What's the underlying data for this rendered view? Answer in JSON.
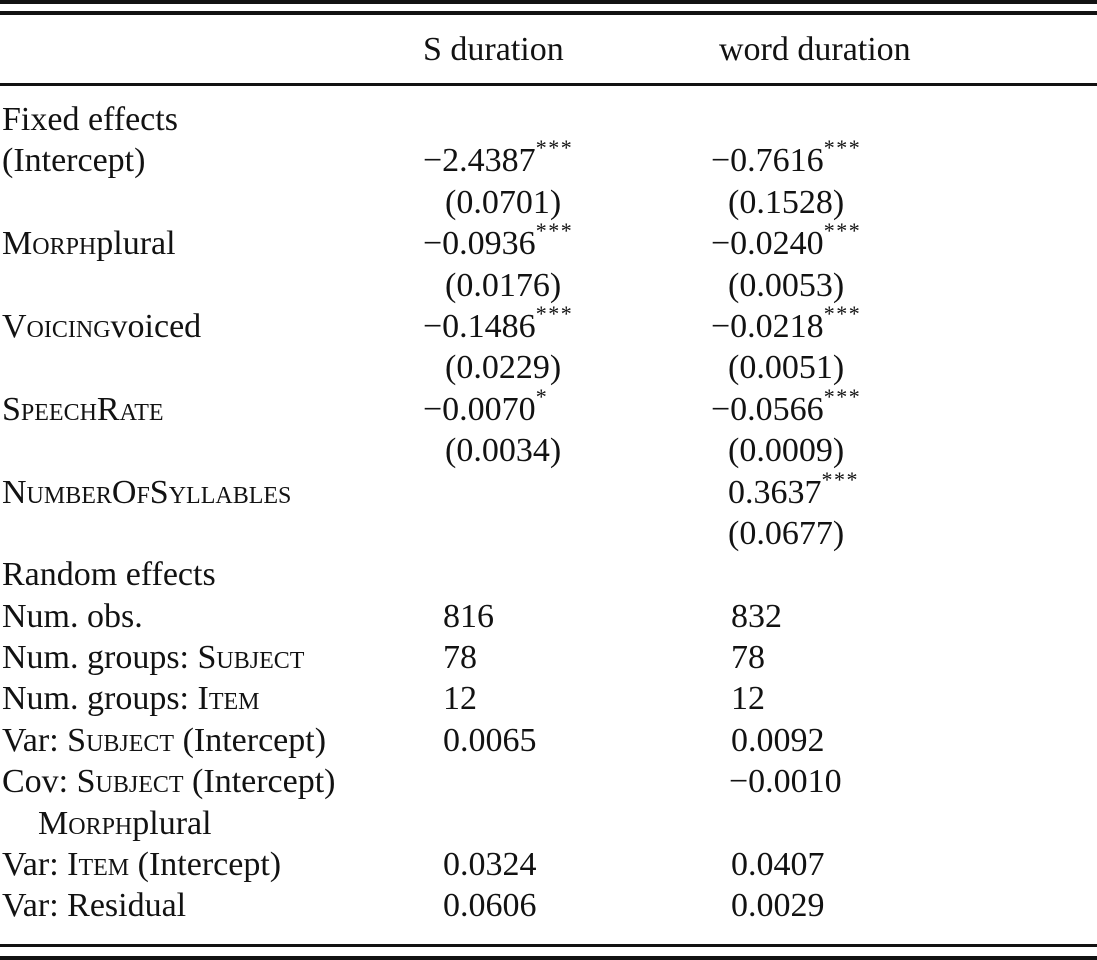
{
  "table": {
    "header": {
      "col1": "S duration",
      "col2": "word duration"
    },
    "text_color": "#121212",
    "background_color": "#ffffff",
    "rows": [
      {
        "label": [
          {
            "t": "Fixed effects"
          }
        ],
        "c1": null,
        "c2": null
      },
      {
        "label": [
          {
            "t": "(Intercept)"
          }
        ],
        "c1": {
          "v": "−2.4387",
          "sup": "***",
          "ind": 0
        },
        "c2": {
          "v": "−0.7616",
          "sup": "***",
          "ind": 0
        }
      },
      {
        "label": [],
        "c1": {
          "v": "(0.0701)",
          "ind": 22
        },
        "c2": {
          "v": "(0.1528)",
          "ind": 17
        }
      },
      {
        "label": [
          {
            "t": "Morph",
            "sc": true
          },
          {
            "t": "plural"
          }
        ],
        "c1": {
          "v": "−0.0936",
          "sup": "***",
          "ind": 0
        },
        "c2": {
          "v": "−0.0240",
          "sup": "***",
          "ind": 0
        }
      },
      {
        "label": [],
        "c1": {
          "v": "(0.0176)",
          "ind": 22
        },
        "c2": {
          "v": "(0.0053)",
          "ind": 17
        }
      },
      {
        "label": [
          {
            "t": "Voicing",
            "sc": true
          },
          {
            "t": "voiced"
          }
        ],
        "c1": {
          "v": "−0.1486",
          "sup": "***",
          "ind": 0
        },
        "c2": {
          "v": "−0.0218",
          "sup": "***",
          "ind": 0
        }
      },
      {
        "label": [],
        "c1": {
          "v": "(0.0229)",
          "ind": 22
        },
        "c2": {
          "v": "(0.0051)",
          "ind": 17
        }
      },
      {
        "label": [
          {
            "t": "SpeechRate",
            "sc": true
          }
        ],
        "c1": {
          "v": "−0.0070",
          "sup": "*",
          "ind": 0
        },
        "c2": {
          "v": "−0.0566",
          "sup": "***",
          "ind": 0
        }
      },
      {
        "label": [],
        "c1": {
          "v": "(0.0034)",
          "ind": 22
        },
        "c2": {
          "v": "(0.0009)",
          "ind": 17
        }
      },
      {
        "label": [
          {
            "t": "NumberOfSyllables",
            "sc": true
          }
        ],
        "c1": null,
        "c2": {
          "v": "0.3637",
          "sup": "***",
          "ind": 17
        }
      },
      {
        "label": [],
        "c1": null,
        "c2": {
          "v": "(0.0677)",
          "ind": 17
        }
      },
      {
        "label": [
          {
            "t": "Random effects"
          }
        ],
        "c1": null,
        "c2": null
      },
      {
        "label": [
          {
            "t": "Num. obs."
          }
        ],
        "c1": {
          "v": "816",
          "ind": 20
        },
        "c2": {
          "v": "832",
          "ind": 20
        }
      },
      {
        "label": [
          {
            "t": "Num. groups: "
          },
          {
            "t": "Subject",
            "sc": true
          }
        ],
        "c1": {
          "v": "78",
          "ind": 20
        },
        "c2": {
          "v": "78",
          "ind": 20
        }
      },
      {
        "label": [
          {
            "t": "Num. groups: "
          },
          {
            "t": "Item",
            "sc": true
          }
        ],
        "c1": {
          "v": "12",
          "ind": 20
        },
        "c2": {
          "v": "12",
          "ind": 20
        }
      },
      {
        "label": [
          {
            "t": "Var: "
          },
          {
            "t": "Subject",
            "sc": true
          },
          {
            "t": " (Intercept)"
          }
        ],
        "c1": {
          "v": "0.0065",
          "ind": 20
        },
        "c2": {
          "v": "0.0092",
          "ind": 20
        }
      },
      {
        "label": [
          {
            "t": "Cov: "
          },
          {
            "t": "Subject",
            "sc": true
          },
          {
            "t": " (Intercept)"
          }
        ],
        "c1": null,
        "c2": {
          "v": "−0.0010",
          "ind": 18
        }
      },
      {
        "label": [
          {
            "t": "Morph",
            "sc": true
          },
          {
            "t": "plural"
          }
        ],
        "indent": true,
        "c1": null,
        "c2": null
      },
      {
        "label": [
          {
            "t": "Var: "
          },
          {
            "t": "Item",
            "sc": true
          },
          {
            "t": " (Intercept)"
          }
        ],
        "c1": {
          "v": "0.0324",
          "ind": 20
        },
        "c2": {
          "v": "0.0407",
          "ind": 20
        }
      },
      {
        "label": [
          {
            "t": "Var: Residual"
          }
        ],
        "c1": {
          "v": "0.0606",
          "ind": 20
        },
        "c2": {
          "v": "0.0029",
          "ind": 20
        }
      }
    ]
  }
}
